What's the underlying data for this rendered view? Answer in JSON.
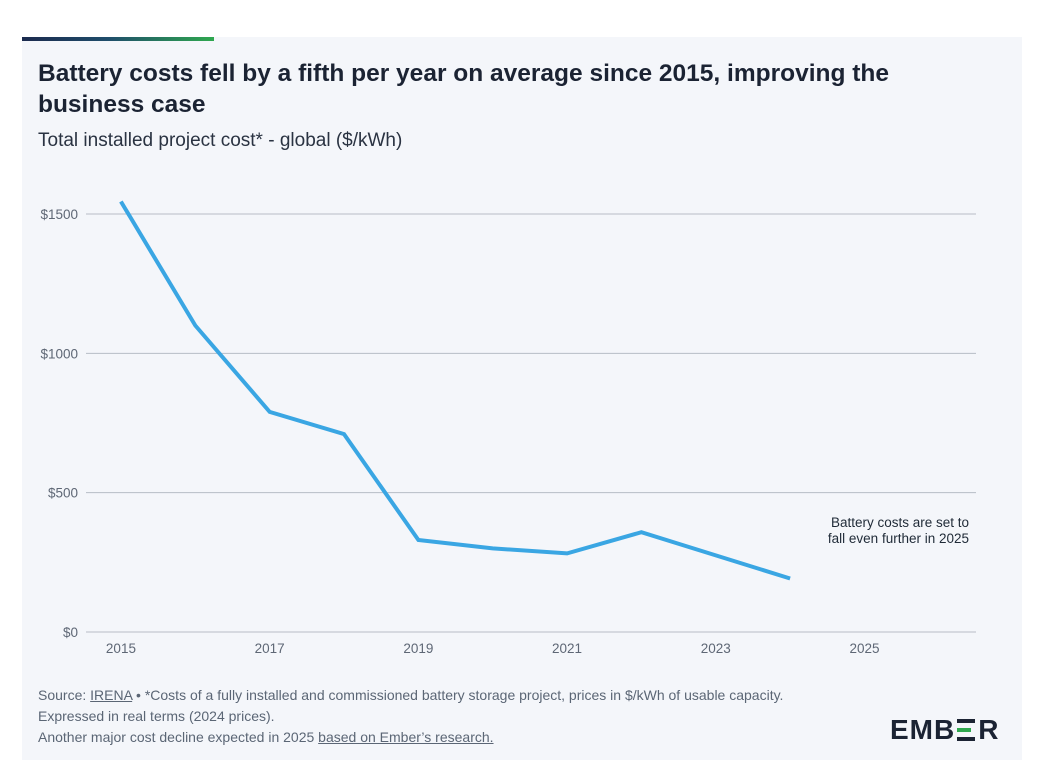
{
  "title": "Battery costs fell by a fifth per year on average since 2015, improving the business case",
  "subtitle": "Total installed project cost* - global ($/kWh)",
  "colors": {
    "line": "#3aa6e3",
    "grid": "#b7bcc6",
    "background": "#f4f6fa",
    "brand_green": "#2fa84f"
  },
  "chart_data": {
    "type": "line",
    "title": "Total installed project cost* - global ($/kWh)",
    "xlabel": "",
    "ylabel": "",
    "x": [
      2015,
      2016,
      2017,
      2018,
      2019,
      2020,
      2021,
      2022,
      2023,
      2024
    ],
    "series": [
      {
        "name": "Total installed project cost ($/kWh)",
        "values": [
          1545,
          1100,
          790,
          710,
          330,
          300,
          282,
          358,
          275,
          192
        ]
      }
    ],
    "xlim": [
      2015,
      2026.5
    ],
    "ylim": [
      0,
      1500
    ],
    "xticks": [
      "2015",
      "2017",
      "2019",
      "2021",
      "2023",
      "2025"
    ],
    "yticks": [
      "$0",
      "$500",
      "$1000",
      "$1500"
    ],
    "annotation": [
      "Battery costs are set to",
      "fall even further in 2025"
    ],
    "grid": true
  },
  "footer": {
    "source_label": "Source: ",
    "source_link": "IRENA",
    "source_note": " • *Costs of a fully installed and commissioned battery storage project, prices in $/kWh of usable capacity. Expressed in real terms (2024 prices).",
    "line2_text": "Another major cost decline expected in 2025 ",
    "line2_link": "based on Ember’s research."
  },
  "logo": {
    "before": "EMB",
    "after": "R"
  }
}
